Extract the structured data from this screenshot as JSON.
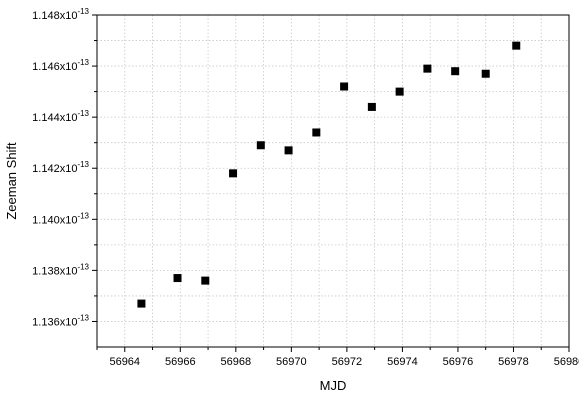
{
  "chart_data": {
    "type": "scatter",
    "xlabel": "MJD",
    "ylabel": "Zeeman Shift",
    "xlim": [
      56963,
      56980
    ],
    "ylim": [
      1.135e-13,
      1.148e-13
    ],
    "x_ticks": [
      56964,
      56966,
      56968,
      56970,
      56972,
      56974,
      56976,
      56978,
      56980
    ],
    "x_tick_labels": [
      "56964",
      "56966",
      "56968",
      "56970",
      "56972",
      "56974",
      "56976",
      "56978",
      "56980"
    ],
    "y_ticks": [
      1.136e-13,
      1.138e-13,
      1.14e-13,
      1.142e-13,
      1.144e-13,
      1.146e-13,
      1.148e-13
    ],
    "y_tick_mantissas": [
      "1.136",
      "1.138",
      "1.140",
      "1.142",
      "1.144",
      "1.146",
      "1.148"
    ],
    "y_tick_multiplier": "x10",
    "y_tick_exponent": "-13",
    "grid": true,
    "marker": "square",
    "marker_color": "#000000",
    "points": [
      {
        "x": 56964.6,
        "y": 1.1367e-13
      },
      {
        "x": 56965.9,
        "y": 1.1377e-13
      },
      {
        "x": 56966.9,
        "y": 1.1376e-13
      },
      {
        "x": 56967.9,
        "y": 1.1418e-13
      },
      {
        "x": 56968.9,
        "y": 1.1429e-13
      },
      {
        "x": 56969.9,
        "y": 1.1427e-13
      },
      {
        "x": 56970.9,
        "y": 1.1434e-13
      },
      {
        "x": 56971.9,
        "y": 1.1452e-13
      },
      {
        "x": 56972.9,
        "y": 1.1444e-13
      },
      {
        "x": 56973.9,
        "y": 1.145e-13
      },
      {
        "x": 56974.9,
        "y": 1.1459e-13
      },
      {
        "x": 56975.9,
        "y": 1.1458e-13
      },
      {
        "x": 56977.0,
        "y": 1.1457e-13
      },
      {
        "x": 56978.1,
        "y": 1.1468e-13
      }
    ]
  }
}
